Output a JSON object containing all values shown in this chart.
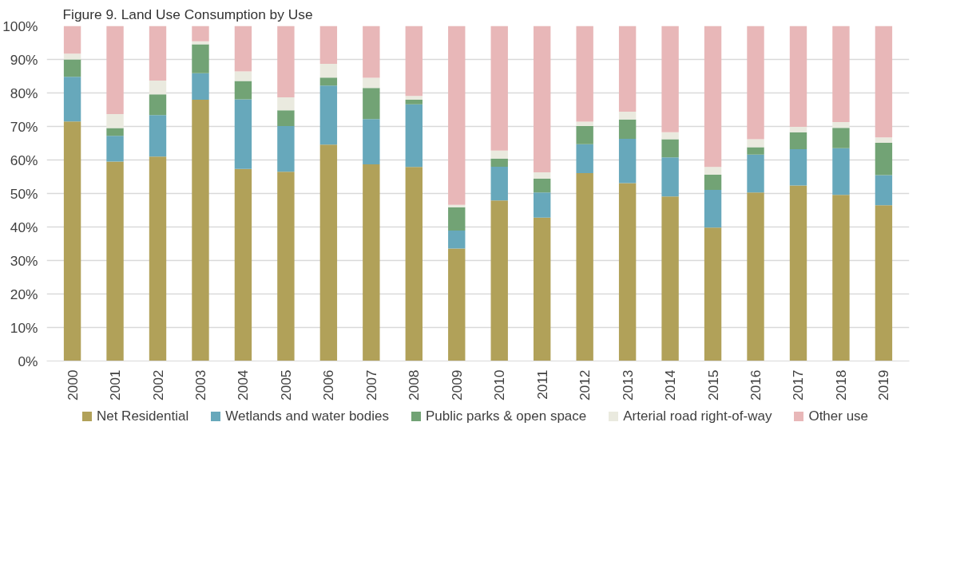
{
  "chart_data": {
    "type": "bar",
    "title": "Figure 9. Land Use Consumption by Use",
    "stacked": true,
    "categories": [
      "2000",
      "2001",
      "2002",
      "2003",
      "2004",
      "2005",
      "2006",
      "2007",
      "2008",
      "2009",
      "2010",
      "2011",
      "2012",
      "2013",
      "2014",
      "2015",
      "2016",
      "2017",
      "2018",
      "2019"
    ],
    "series": [
      {
        "name": "Net Residential",
        "color": "#b1a159",
        "values": [
          71.5,
          59.5,
          61,
          78,
          57.3,
          56.5,
          64.6,
          58.7,
          57.9,
          33.6,
          47.9,
          42.8,
          56.1,
          53.1,
          49.1,
          39.8,
          50.3,
          52.4,
          49.6,
          46.5
        ]
      },
      {
        "name": "Wetlands and water bodies",
        "color": "#67a8bb",
        "values": [
          13.3,
          7.7,
          12.4,
          7.9,
          20.8,
          13.6,
          17.6,
          13.5,
          18.7,
          5.3,
          10.1,
          7.5,
          8.6,
          13.2,
          11.7,
          11.3,
          11.3,
          10.8,
          13.9,
          9
        ]
      },
      {
        "name": "Public parks & open space",
        "color": "#72a375",
        "values": [
          5.2,
          2.3,
          6.2,
          8.6,
          5.5,
          4.7,
          2.4,
          9.3,
          1.4,
          7,
          2.4,
          4.1,
          5.4,
          5.8,
          5.4,
          4.5,
          2.2,
          5.1,
          6.1,
          9.6
        ]
      },
      {
        "name": "Arterial road right-of-way",
        "color": "#eaeadf",
        "values": [
          1.7,
          4.2,
          4.1,
          0.9,
          2.8,
          3.9,
          4.1,
          3,
          1.1,
          0.7,
          2.4,
          1.9,
          1.3,
          2.3,
          2.1,
          2.3,
          2.4,
          1.6,
          1.7,
          1.6
        ]
      },
      {
        "name": "Other use",
        "color": "#e8b7b8",
        "values": [
          8.3,
          26.3,
          16.3,
          4.6,
          13.6,
          21.3,
          11.3,
          15.5,
          20.9,
          53.4,
          37.2,
          43.7,
          28.6,
          25.6,
          31.7,
          42.1,
          33.8,
          30.1,
          28.7,
          33.3
        ]
      }
    ],
    "ylim": [
      0,
      100
    ],
    "yticks": [
      {
        "value": 0,
        "label": "0%"
      },
      {
        "value": 10,
        "label": "10%"
      },
      {
        "value": 20,
        "label": "20%"
      },
      {
        "value": 30,
        "label": "30%"
      },
      {
        "value": 40,
        "label": "40%"
      },
      {
        "value": 50,
        "label": "50%"
      },
      {
        "value": 60,
        "label": "60%"
      },
      {
        "value": 70,
        "label": "70%"
      },
      {
        "value": 80,
        "label": "80%"
      },
      {
        "value": 90,
        "label": "90%"
      },
      {
        "value": 100,
        "label": "100%"
      }
    ],
    "grid": "y",
    "legend": "bottom"
  }
}
